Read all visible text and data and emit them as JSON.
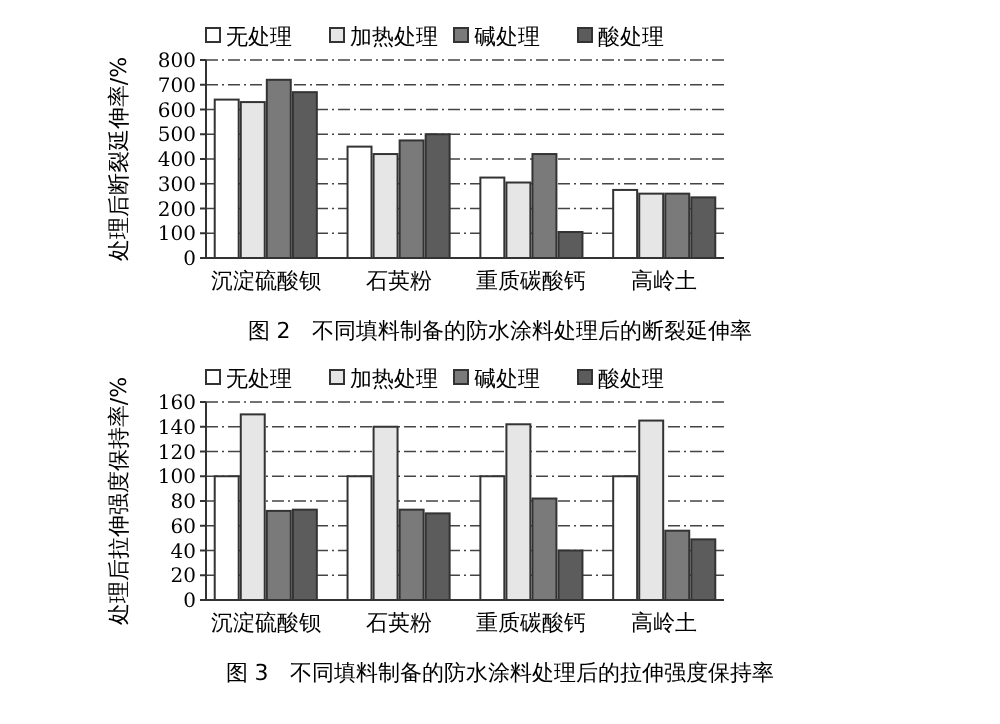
{
  "chart_data": [
    {
      "type": "bar",
      "title": "图 2　不同填料制备的防水涂料处理后的断裂延伸率",
      "ylabel": "处理后断裂延伸率/%",
      "categories": [
        "沉淀硫酸钡",
        "石英粉",
        "重质碳酸钙",
        "高岭土"
      ],
      "series": [
        {
          "name": "无处理",
          "color": "#ffffff",
          "values": [
            640,
            450,
            325,
            275
          ]
        },
        {
          "name": "加热处理",
          "color": "#e6e6e6",
          "values": [
            630,
            420,
            305,
            260
          ]
        },
        {
          "name": "碱处理",
          "color": "#7a7a7a",
          "values": [
            720,
            475,
            420,
            260
          ]
        },
        {
          "name": "酸处理",
          "color": "#5c5c5c",
          "values": [
            670,
            500,
            105,
            245
          ]
        }
      ],
      "ylim": [
        0,
        800
      ],
      "yticks": [
        0,
        100,
        200,
        300,
        400,
        500,
        600,
        700,
        800
      ],
      "grid": "y",
      "legend": "top"
    },
    {
      "type": "bar",
      "title": "图 3　不同填料制备的防水涂料处理后的拉伸强度保持率",
      "ylabel": "处理后拉伸强度保持率/%",
      "categories": [
        "沉淀硫酸钡",
        "石英粉",
        "重质碳酸钙",
        "高岭土"
      ],
      "series": [
        {
          "name": "无处理",
          "color": "#ffffff",
          "values": [
            100,
            100,
            100,
            100
          ]
        },
        {
          "name": "加热处理",
          "color": "#e6e6e6",
          "values": [
            150,
            140,
            142,
            145
          ]
        },
        {
          "name": "碱处理",
          "color": "#7a7a7a",
          "values": [
            72,
            73,
            82,
            56
          ]
        },
        {
          "name": "酸处理",
          "color": "#5c5c5c",
          "values": [
            73,
            70,
            40,
            49
          ]
        }
      ],
      "ylim": [
        0,
        160
      ],
      "yticks": [
        0,
        20,
        40,
        60,
        80,
        100,
        120,
        140,
        160
      ],
      "grid": "y",
      "legend": "top"
    }
  ]
}
